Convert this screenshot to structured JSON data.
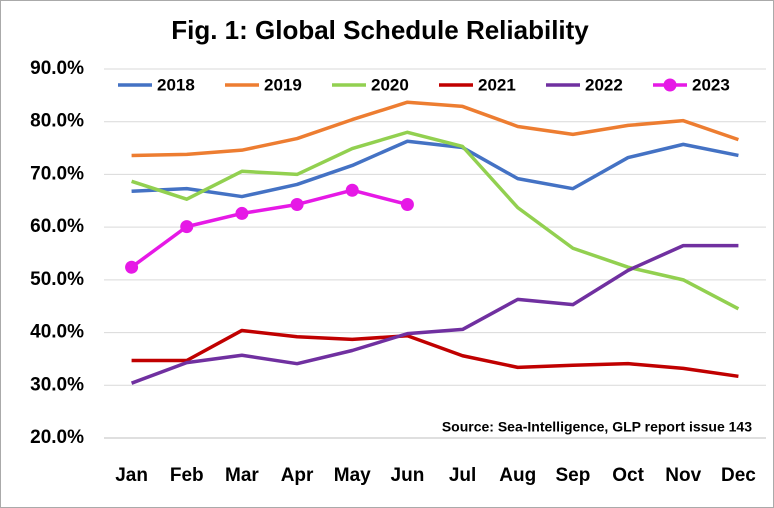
{
  "chart_data": {
    "type": "line",
    "title": "Fig. 1: Global Schedule Reliability",
    "annotation": "Source: Sea-Intelligence, GLP report issue 143",
    "categories": [
      "Jan",
      "Feb",
      "Mar",
      "Apr",
      "May",
      "Jun",
      "Jul",
      "Aug",
      "Sep",
      "Oct",
      "Nov",
      "Dec"
    ],
    "ylim": [
      20,
      90
    ],
    "yticks": [
      {
        "value": 20,
        "label": "20.0%"
      },
      {
        "value": 30,
        "label": "30.0%"
      },
      {
        "value": 40,
        "label": "40.0%"
      },
      {
        "value": 50,
        "label": "50.0%"
      },
      {
        "value": 60,
        "label": "60.0%"
      },
      {
        "value": 70,
        "label": "70.0%"
      },
      {
        "value": 80,
        "label": "80.0%"
      },
      {
        "value": 90,
        "label": "90.0%"
      }
    ],
    "grid": true,
    "legend": "top",
    "series": [
      {
        "name": "2018",
        "color": "#4472c4",
        "values": [
          66.8,
          67.3,
          65.8,
          68.1,
          71.7,
          76.3,
          75.1,
          69.2,
          67.3,
          73.2,
          75.7,
          73.6
        ]
      },
      {
        "name": "2019",
        "color": "#ed7d31",
        "values": [
          73.6,
          73.8,
          74.6,
          76.8,
          80.4,
          83.7,
          82.9,
          79.1,
          77.6,
          79.3,
          80.2,
          76.6
        ]
      },
      {
        "name": "2020",
        "color": "#92d050",
        "values": [
          68.7,
          65.3,
          70.6,
          70.0,
          74.9,
          78.0,
          75.3,
          63.7,
          56.0,
          52.4,
          50.0,
          44.5
        ]
      },
      {
        "name": "2021",
        "color": "#c00000",
        "values": [
          34.7,
          34.7,
          40.4,
          39.2,
          38.7,
          39.4,
          35.6,
          33.4,
          33.8,
          34.1,
          33.2,
          31.7
        ]
      },
      {
        "name": "2022",
        "color": "#7030a0",
        "values": [
          30.4,
          34.3,
          35.7,
          34.1,
          36.6,
          39.8,
          40.6,
          46.3,
          45.3,
          51.8,
          56.5,
          56.5
        ]
      },
      {
        "name": "2023",
        "color": "#e619e6",
        "marker": true,
        "values": [
          52.4,
          60.1,
          62.6,
          64.3,
          67.0,
          64.3,
          null,
          null,
          null,
          null,
          null,
          null
        ]
      }
    ]
  }
}
